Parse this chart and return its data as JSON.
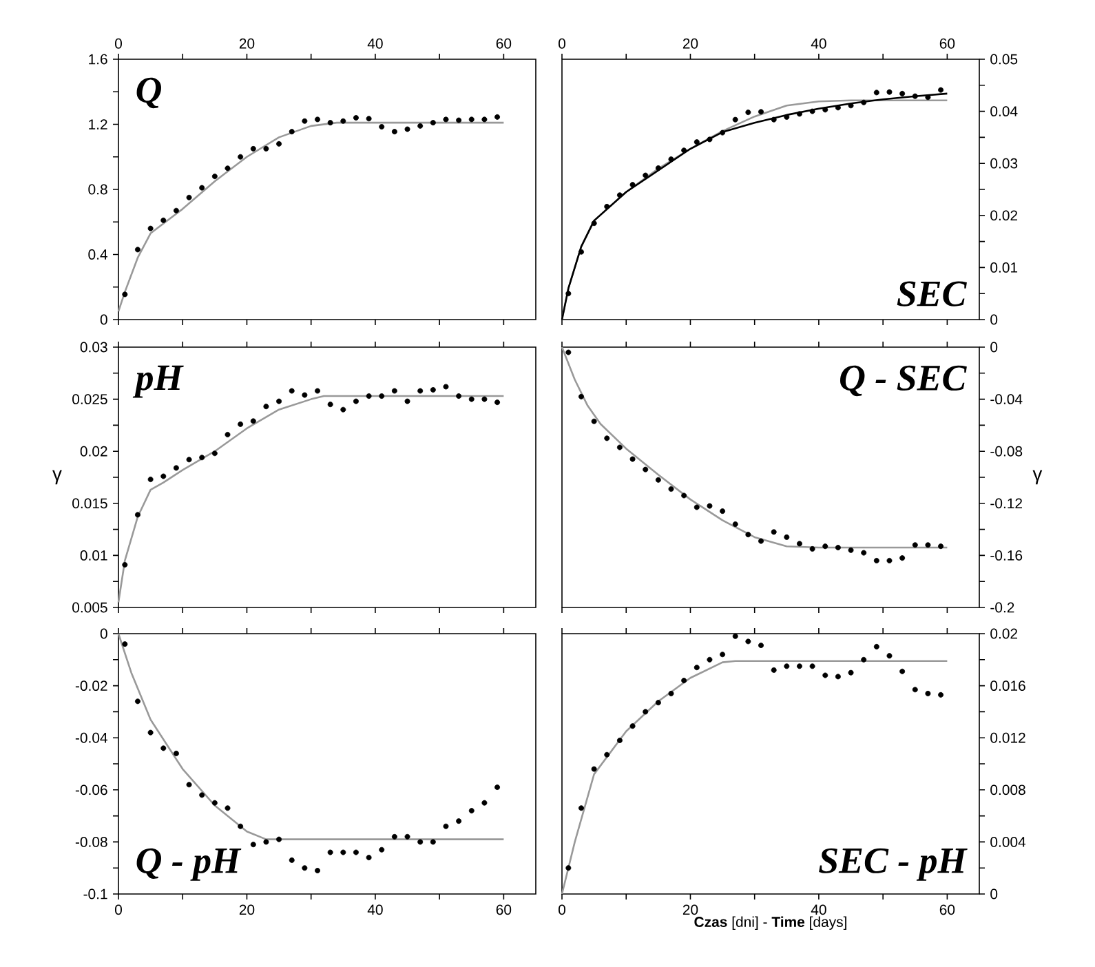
{
  "chart_data": [
    {
      "type": "scatter",
      "title": "Q",
      "xlim": [
        0,
        65
      ],
      "xticks": [
        0,
        {
          "value": 10,
          "label": null
        },
        20,
        {
          "value": 30,
          "label": null
        },
        40,
        {
          "value": 50,
          "label": null
        },
        60
      ],
      "ylim": [
        0,
        1.6
      ],
      "yticks": [
        0,
        {
          "value": 0.2,
          "label": null
        },
        0.4,
        {
          "value": 0.6,
          "label": null
        },
        0.8,
        {
          "value": 1.0,
          "label": null
        },
        1.2,
        {
          "value": 1.4,
          "label": null
        },
        1.6
      ],
      "series": [
        {
          "type": "line",
          "color": "#999999",
          "line_style": "solid",
          "x": [
            0,
            1,
            3,
            5,
            10,
            15,
            20,
            25,
            30,
            34,
            60
          ],
          "values": [
            0.05,
            0.17,
            0.38,
            0.53,
            0.68,
            0.85,
            1.0,
            1.12,
            1.19,
            1.21,
            1.21
          ]
        },
        {
          "color": "#000000",
          "marker": "circle",
          "x": [
            1,
            3,
            5,
            7,
            9,
            11,
            13,
            15,
            17,
            19,
            21,
            23,
            25,
            27,
            29,
            31,
            33,
            35,
            37,
            39,
            41,
            43,
            45,
            47,
            49,
            51,
            53,
            55,
            57,
            59
          ],
          "values": [
            0.155,
            0.43,
            0.56,
            0.61,
            0.67,
            0.75,
            0.81,
            0.88,
            0.93,
            1.0,
            1.05,
            1.05,
            1.08,
            1.155,
            1.22,
            1.23,
            1.21,
            1.22,
            1.24,
            1.235,
            1.185,
            1.155,
            1.17,
            1.19,
            1.21,
            1.23,
            1.225,
            1.23,
            1.23,
            1.245
          ]
        }
      ]
    },
    {
      "type": "scatter",
      "title": "SEC",
      "xlim": [
        0,
        65
      ],
      "xticks": [
        0,
        {
          "value": 10,
          "label": null
        },
        20,
        {
          "value": 30,
          "label": null
        },
        40,
        {
          "value": 50,
          "label": null
        },
        60
      ],
      "ylim": [
        0,
        0.05
      ],
      "yticks": [
        0,
        {
          "value": 0.005,
          "label": null
        },
        0.01,
        {
          "value": 0.015,
          "label": null
        },
        0.02,
        {
          "value": 0.025,
          "label": null
        },
        0.03,
        {
          "value": 0.035,
          "label": null
        },
        0.04,
        {
          "value": 0.045,
          "label": null
        },
        0.05
      ],
      "series": [
        {
          "type": "line",
          "color": "#999999",
          "line_style": "solid",
          "x": [
            0,
            1,
            3,
            5,
            10,
            15,
            20,
            25,
            30,
            35,
            40,
            45,
            60
          ],
          "values": [
            0,
            0.006,
            0.014,
            0.019,
            0.0245,
            0.029,
            0.0328,
            0.0362,
            0.039,
            0.0411,
            0.0419,
            0.0421,
            0.0421
          ]
        },
        {
          "type": "line",
          "color": "#000000",
          "line_style": "solid",
          "x": [
            0,
            1,
            3,
            5,
            10,
            20,
            25,
            30,
            35,
            40,
            45,
            50,
            55,
            60
          ],
          "values": [
            0,
            0.006,
            0.014,
            0.019,
            0.0245,
            0.0328,
            0.036,
            0.0378,
            0.0393,
            0.0405,
            0.0415,
            0.0423,
            0.0429,
            0.0434
          ]
        },
        {
          "color": "#000000",
          "marker": "circle",
          "x": [
            1,
            3,
            5,
            7,
            9,
            11,
            13,
            15,
            17,
            19,
            21,
            23,
            25,
            27,
            29,
            31,
            33,
            35,
            37,
            39,
            41,
            43,
            45,
            47,
            49,
            51,
            53,
            55,
            57,
            59
          ],
          "values": [
            0.005,
            0.013,
            0.0185,
            0.0217,
            0.0239,
            0.0259,
            0.0277,
            0.0291,
            0.0308,
            0.0325,
            0.0341,
            0.0346,
            0.0359,
            0.0384,
            0.0398,
            0.0399,
            0.0384,
            0.0389,
            0.0395,
            0.04,
            0.0403,
            0.0407,
            0.0411,
            0.0417,
            0.0436,
            0.0437,
            0.0434,
            0.0429,
            0.0427,
            0.0441
          ]
        }
      ]
    },
    {
      "type": "scatter",
      "title": "pH",
      "ylabel": "γ",
      "tick_labels": "y",
      "xlim": [
        0,
        65
      ],
      "xticks": [
        0,
        {
          "value": 10,
          "label": null
        },
        20,
        {
          "value": 30,
          "label": null
        },
        40,
        {
          "value": 50,
          "label": null
        },
        60
      ],
      "ylim": [
        0.005,
        0.03
      ],
      "yticks": [
        0.005,
        {
          "value": 0.0075,
          "label": null
        },
        0.01,
        {
          "value": 0.0125,
          "label": null
        },
        0.015,
        {
          "value": 0.0175,
          "label": null
        },
        0.02,
        {
          "value": 0.0225,
          "label": null
        },
        0.025,
        {
          "value": 0.0275,
          "label": null
        },
        0.03
      ],
      "series": [
        {
          "type": "line",
          "color": "#999999",
          "line_style": "solid",
          "x": [
            0,
            1,
            3,
            5,
            7,
            10,
            15,
            20,
            25,
            30,
            32,
            60
          ],
          "values": [
            0.0055,
            0.0095,
            0.0137,
            0.0163,
            0.017,
            0.0182,
            0.02,
            0.0222,
            0.024,
            0.025,
            0.0253,
            0.0253
          ]
        },
        {
          "color": "#000000",
          "marker": "circle",
          "x": [
            1,
            3,
            5,
            7,
            9,
            11,
            13,
            15,
            17,
            19,
            21,
            23,
            25,
            27,
            29,
            31,
            33,
            35,
            37,
            39,
            41,
            43,
            45,
            47,
            49,
            51,
            53,
            55,
            57,
            59
          ],
          "values": [
            0.0091,
            0.0139,
            0.0173,
            0.0176,
            0.0184,
            0.0192,
            0.0194,
            0.0198,
            0.0216,
            0.0226,
            0.0229,
            0.0243,
            0.0248,
            0.0258,
            0.0254,
            0.0258,
            0.0245,
            0.024,
            0.0248,
            0.0253,
            0.0253,
            0.0258,
            0.0248,
            0.0258,
            0.0259,
            0.0262,
            0.0253,
            0.025,
            0.025,
            0.0247
          ]
        }
      ]
    },
    {
      "type": "scatter",
      "title": "Q - SEC",
      "ylabel": "γ",
      "tick_labels": "y",
      "xlim": [
        0,
        65
      ],
      "xticks": [
        0,
        {
          "value": 10,
          "label": null
        },
        20,
        {
          "value": 30,
          "label": null
        },
        40,
        {
          "value": 50,
          "label": null
        },
        60
      ],
      "ylim": [
        -0.2,
        0
      ],
      "yticks": [
        -0.2,
        {
          "value": -0.18,
          "label": null
        },
        -0.16,
        {
          "value": -0.14,
          "label": null
        },
        -0.12,
        {
          "value": -0.1,
          "label": null
        },
        -0.08,
        {
          "value": -0.06,
          "label": null
        },
        -0.04,
        {
          "value": -0.02,
          "label": null
        },
        0
      ],
      "series": [
        {
          "type": "line",
          "color": "#999999",
          "line_style": "solid",
          "x": [
            0,
            2,
            4,
            6,
            10,
            15,
            20,
            25,
            30,
            35,
            40,
            60
          ],
          "values": [
            0,
            -0.025,
            -0.045,
            -0.059,
            -0.078,
            -0.098,
            -0.117,
            -0.133,
            -0.146,
            -0.153,
            -0.154,
            -0.154
          ]
        },
        {
          "color": "#000000",
          "marker": "circle",
          "x": [
            1,
            3,
            5,
            7,
            9,
            11,
            13,
            15,
            17,
            19,
            21,
            23,
            25,
            27,
            29,
            31,
            33,
            35,
            37,
            39,
            41,
            43,
            45,
            47,
            49,
            51,
            53,
            55,
            57,
            59
          ],
          "values": [
            -0.004,
            -0.038,
            -0.057,
            -0.07,
            -0.077,
            -0.086,
            -0.094,
            -0.102,
            -0.109,
            -0.114,
            -0.123,
            -0.122,
            -0.126,
            -0.136,
            -0.144,
            -0.149,
            -0.142,
            -0.146,
            -0.151,
            -0.155,
            -0.153,
            -0.154,
            -0.156,
            -0.158,
            -0.164,
            -0.164,
            -0.162,
            -0.152,
            -0.152,
            -0.153
          ]
        }
      ]
    },
    {
      "type": "scatter",
      "title": "Q - pH",
      "xlim": [
        0,
        65
      ],
      "xticks": [
        0,
        {
          "value": 10,
          "label": null
        },
        20,
        {
          "value": 30,
          "label": null
        },
        40,
        {
          "value": 50,
          "label": null
        },
        60
      ],
      "ylim": [
        -0.1,
        0
      ],
      "yticks": [
        -0.1,
        {
          "value": -0.09,
          "label": null
        },
        -0.08,
        {
          "value": -0.07,
          "label": null
        },
        -0.06,
        {
          "value": -0.05,
          "label": null
        },
        -0.04,
        {
          "value": -0.03,
          "label": null
        },
        -0.02,
        {
          "value": -0.01,
          "label": null
        },
        0
      ],
      "series": [
        {
          "type": "line",
          "color": "#999999",
          "line_style": "solid",
          "x": [
            0,
            2,
            5,
            10,
            15,
            20,
            23,
            60
          ],
          "values": [
            0,
            -0.015,
            -0.033,
            -0.052,
            -0.066,
            -0.076,
            -0.079,
            -0.079
          ]
        },
        {
          "color": "#000000",
          "marker": "circle",
          "x": [
            1,
            3,
            5,
            7,
            9,
            11,
            13,
            15,
            17,
            19,
            21,
            23,
            25,
            27,
            29,
            31,
            33,
            35,
            37,
            39,
            41,
            43,
            45,
            47,
            49,
            51,
            53,
            55,
            57,
            59
          ],
          "values": [
            -0.004,
            -0.026,
            -0.038,
            -0.044,
            -0.046,
            -0.058,
            -0.062,
            -0.065,
            -0.067,
            -0.074,
            -0.081,
            -0.08,
            -0.079,
            -0.087,
            -0.09,
            -0.091,
            -0.084,
            -0.084,
            -0.084,
            -0.086,
            -0.083,
            -0.078,
            -0.078,
            -0.08,
            -0.08,
            -0.074,
            -0.072,
            -0.068,
            -0.065,
            -0.059
          ]
        }
      ]
    },
    {
      "type": "scatter",
      "title": "SEC - pH",
      "xlabel": "**Czas** [dni] - **Time** [days]",
      "xlim": [
        0,
        65
      ],
      "xticks": [
        0,
        {
          "value": 10,
          "label": null
        },
        20,
        {
          "value": 30,
          "label": null
        },
        40,
        {
          "value": 50,
          "label": null
        },
        60
      ],
      "ylim": [
        0,
        0.02
      ],
      "yticks": [
        0,
        {
          "value": 0.002,
          "label": null
        },
        0.004,
        {
          "value": 0.006,
          "label": null
        },
        0.008,
        {
          "value": 0.01,
          "label": null
        },
        0.012,
        {
          "value": 0.014,
          "label": null
        },
        0.016,
        {
          "value": 0.018,
          "label": null
        },
        0.02
      ],
      "series": [
        {
          "type": "line",
          "color": "#999999",
          "line_style": "solid",
          "x": [
            0,
            2,
            5,
            10,
            15,
            20,
            25,
            27,
            60
          ],
          "values": [
            0,
            0.004,
            0.0092,
            0.0125,
            0.0148,
            0.0166,
            0.0178,
            0.0179,
            0.0179
          ]
        },
        {
          "color": "#000000",
          "marker": "circle",
          "x": [
            1,
            3,
            5,
            7,
            9,
            11,
            13,
            15,
            17,
            19,
            21,
            23,
            25,
            27,
            29,
            31,
            33,
            35,
            37,
            39,
            41,
            43,
            45,
            47,
            49,
            51,
            53,
            55,
            57,
            59
          ],
          "values": [
            0.002,
            0.0066,
            0.0096,
            0.0107,
            0.0118,
            0.0129,
            0.014,
            0.0147,
            0.0154,
            0.0164,
            0.0174,
            0.018,
            0.0184,
            0.0198,
            0.0194,
            0.0191,
            0.0172,
            0.0175,
            0.0175,
            0.0175,
            0.0168,
            0.0167,
            0.017,
            0.018,
            0.019,
            0.0183,
            0.0171,
            0.0157,
            0.0154,
            0.0153
          ]
        }
      ]
    }
  ]
}
